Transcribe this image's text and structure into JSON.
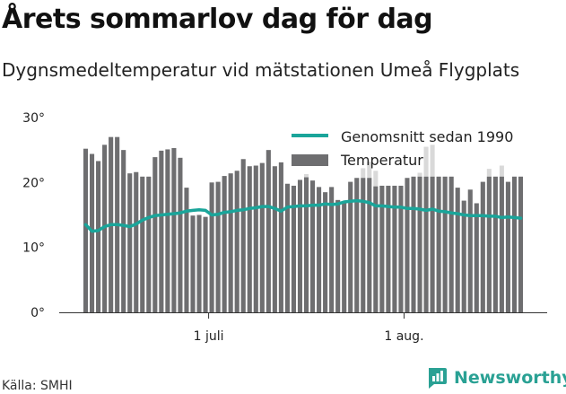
{
  "title": "Årets sommarlov dag för dag",
  "subtitle": "Dygnsmedeltemperatur vid mätstationen Umeå Flygplats",
  "source": "Källa: SMHI",
  "brand": "Newsworthy",
  "colors": {
    "bar": "#6e6e70",
    "line": "#1aa59a",
    "brand": "#2aa194",
    "shadow": "#d9d9d9",
    "grid": "#dddddd"
  },
  "chart_data": {
    "type": "bar",
    "ylim": [
      0,
      30
    ],
    "yticks": [
      0,
      10,
      20,
      30
    ],
    "ytick_labels": [
      "0°",
      "10°",
      "20°",
      "30°"
    ],
    "x_labels": [
      {
        "label": "1 juli",
        "index": 20
      },
      {
        "label": "1 aug.",
        "index": 51
      }
    ],
    "legend": {
      "placement": "top-right",
      "line_label": "Genomsnitt sedan 1990",
      "bar_label": "Temperatur"
    },
    "grid": false,
    "series": [
      {
        "name": "Temperatur",
        "kind": "bar",
        "values": [
          25.2,
          24.4,
          23.3,
          25.8,
          27,
          27,
          25,
          21.4,
          21.6,
          20.9,
          20.9,
          23.9,
          24.9,
          25.1,
          25.3,
          23.8,
          19.2,
          14.9,
          15,
          14.7,
          20,
          20.1,
          21,
          21.4,
          21.8,
          23.6,
          22.5,
          22.6,
          23,
          25,
          22.5,
          23.1,
          19.8,
          19.5,
          20.4,
          20.8,
          20.3,
          19.3,
          18.5,
          19.3,
          17.3,
          17.1,
          20.1,
          20.7,
          20.7,
          20.7,
          19.4,
          19.5,
          19.5,
          19.5,
          19.5,
          20.7,
          20.9,
          20.9,
          20.9,
          20.9,
          20.9,
          20.9,
          20.9,
          19.2,
          17.2,
          18.9,
          16.8,
          20.1,
          20.9,
          20.9,
          20.9,
          20.1,
          20.9,
          20.9
        ],
        "shadow_values": [
          25.2,
          24.4,
          23.3,
          25.8,
          27,
          27,
          25,
          21.4,
          21.6,
          20.9,
          20.9,
          23.9,
          24.9,
          25.1,
          25.3,
          23.8,
          19.2,
          14.9,
          15,
          14.7,
          20,
          20.1,
          21,
          21.4,
          21.8,
          23.6,
          22.5,
          22.6,
          23,
          25,
          22.5,
          23.1,
          19.8,
          19.5,
          20.4,
          21.3,
          20.3,
          19.3,
          18.5,
          19.3,
          17.3,
          17.1,
          20.1,
          20.7,
          22.2,
          23.2,
          21.8,
          19.5,
          19.5,
          19.5,
          19.5,
          20.7,
          20.9,
          21.5,
          25.5,
          25.8,
          20.9,
          20.9,
          20.9,
          19.2,
          17.2,
          18.9,
          16.8,
          20.1,
          22.1,
          20.9,
          22.6,
          20.1,
          20.9,
          20.9
        ]
      },
      {
        "name": "Genomsnitt sedan 1990",
        "kind": "line",
        "values": [
          13.5,
          12.5,
          12.6,
          13.2,
          13.5,
          13.5,
          13.4,
          13.2,
          13.6,
          14.2,
          14.6,
          14.9,
          15,
          15.1,
          15.2,
          15.3,
          15.6,
          15.7,
          15.8,
          15.7,
          15.0,
          15.1,
          15.4,
          15.5,
          15.7,
          15.8,
          16.0,
          16.1,
          16.3,
          16.3,
          16.0,
          15.6,
          16.2,
          16.3,
          16.4,
          16.4,
          16.5,
          16.5,
          16.7,
          16.6,
          16.7,
          17.0,
          17.1,
          17.2,
          17.1,
          16.9,
          16.4,
          16.4,
          16.3,
          16.2,
          16.2,
          16.0,
          16.0,
          15.9,
          15.7,
          15.9,
          15.6,
          15.5,
          15.3,
          15.2,
          15.0,
          14.9,
          14.9,
          14.9,
          14.8,
          14.8,
          14.6,
          14.7,
          14.6,
          14.5
        ]
      }
    ]
  }
}
